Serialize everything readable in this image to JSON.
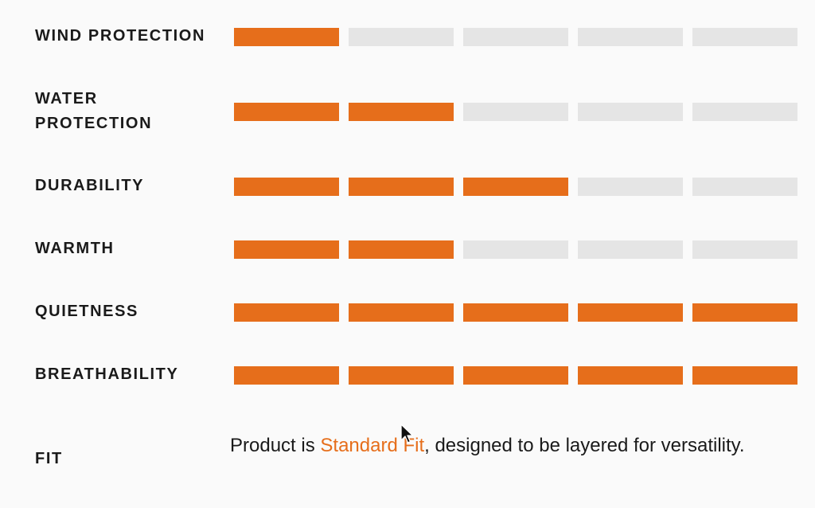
{
  "attributes": [
    {
      "name": "WIND PROTECTION",
      "rating": 1,
      "max": 5
    },
    {
      "name": "WATER PROTECTION",
      "rating": 2,
      "max": 5
    },
    {
      "name": "DURABILITY",
      "rating": 3,
      "max": 5
    },
    {
      "name": "WARMTH",
      "rating": 2,
      "max": 5
    },
    {
      "name": "QUIETNESS",
      "rating": 5,
      "max": 5
    },
    {
      "name": "BREATHABILITY",
      "rating": 5,
      "max": 5
    }
  ],
  "fit": {
    "label": "FIT",
    "prefix": "Product is ",
    "link_text": "Standard Fit",
    "suffix": ", designed to be layered for versatility."
  },
  "colors": {
    "filled": "#e66e1b",
    "empty": "#e5e5e5",
    "text": "#1a1a1a",
    "background": "#fafafa"
  }
}
